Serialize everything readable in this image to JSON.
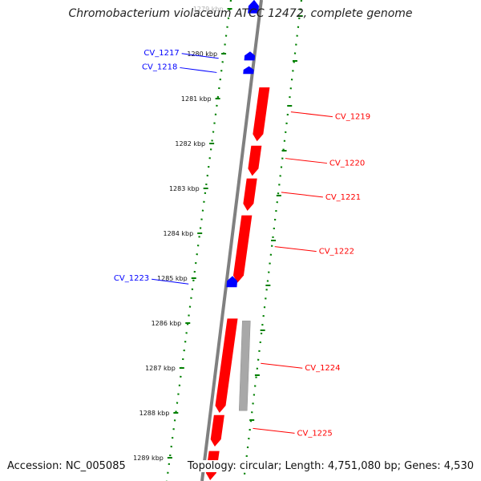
{
  "title": "Chromobacterium violaceum ATCC 12472, complete genome",
  "footer": {
    "accession": "Accession: NC_005085",
    "summary": "Topology: circular; Length: 4,751,080 bp; Genes: 4,530"
  },
  "colors": {
    "forward_strand": "#0000ff",
    "reverse_strand": "#ff0000",
    "other_feature": "#a8a8a8",
    "backbone": "#808080",
    "tick_track": "#008000"
  },
  "ticks": [
    {
      "label": "1279 kbp",
      "kbp": 1279,
      "faded": true
    },
    {
      "label": "1280 kbp",
      "kbp": 1280
    },
    {
      "label": "1281 kbp",
      "kbp": 1281
    },
    {
      "label": "1282 kbp",
      "kbp": 1282
    },
    {
      "label": "1283 kbp",
      "kbp": 1283
    },
    {
      "label": "1284 kbp",
      "kbp": 1284
    },
    {
      "label": "1285 kbp",
      "kbp": 1285
    },
    {
      "label": "1286 kbp",
      "kbp": 1286
    },
    {
      "label": "1287 kbp",
      "kbp": 1287
    },
    {
      "label": "1288 kbp",
      "kbp": 1288
    },
    {
      "label": "1289 kbp",
      "kbp": 1289
    }
  ],
  "genes": [
    {
      "name": "CV_1217",
      "strand": "forward",
      "start_kbp": 1279.95,
      "end_kbp": 1280.15,
      "labeled": true
    },
    {
      "name": "CV_1218",
      "strand": "forward",
      "start_kbp": 1280.28,
      "end_kbp": 1280.45,
      "labeled": true
    },
    {
      "name": "CV_1219",
      "strand": "reverse",
      "start_kbp": 1280.75,
      "end_kbp": 1281.95,
      "labeled": true
    },
    {
      "name": "CV_1220",
      "strand": "reverse",
      "start_kbp": 1282.05,
      "end_kbp": 1282.72,
      "labeled": true
    },
    {
      "name": "CV_1221",
      "strand": "reverse",
      "start_kbp": 1282.78,
      "end_kbp": 1283.5,
      "labeled": true
    },
    {
      "name": "CV_1222",
      "strand": "reverse",
      "start_kbp": 1283.6,
      "end_kbp": 1285.1,
      "labeled": true
    },
    {
      "name": "CV_1223",
      "strand": "forward",
      "start_kbp": 1284.95,
      "end_kbp": 1285.2,
      "labeled": true
    },
    {
      "name": "CV_1224",
      "strand": "reverse",
      "start_kbp": 1285.9,
      "end_kbp": 1288.0,
      "labeled": true
    },
    {
      "name": "CV_1225",
      "strand": "reverse",
      "start_kbp": 1288.05,
      "end_kbp": 1288.75,
      "labeled": true
    },
    {
      "name": "",
      "strand": "other",
      "start_kbp": 1285.95,
      "end_kbp": 1287.95,
      "labeled": false
    },
    {
      "name": "",
      "strand": "forward",
      "start_kbp": 1278.8,
      "end_kbp": 1279.1,
      "labeled": false
    },
    {
      "name": "",
      "strand": "reverse",
      "start_kbp": 1288.85,
      "end_kbp": 1289.5,
      "labeled": false
    }
  ]
}
